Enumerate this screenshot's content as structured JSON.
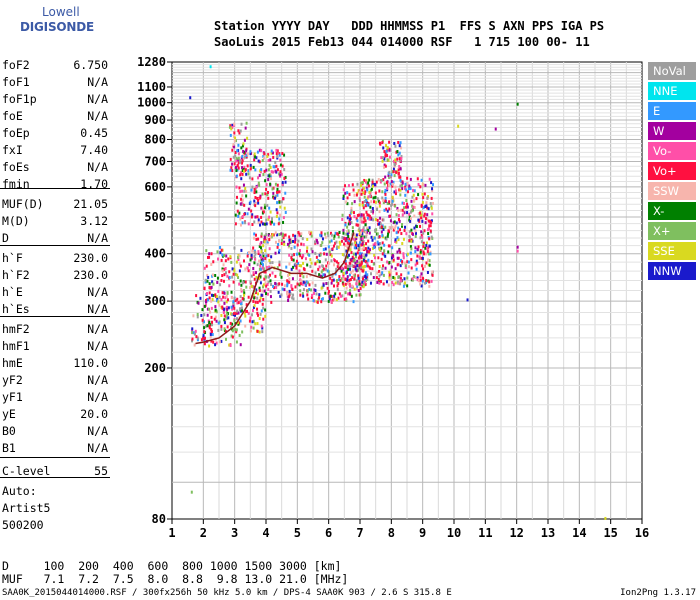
{
  "logo": {
    "line1": "Lowell",
    "line2": "DIGISONDE"
  },
  "header": {
    "line1": "Station YYYY DAY   DDD HHMMSS P1  FFS S AXN PPS IGA PS",
    "line2": "SaoLuis 2015 Feb13 044 014000 RSF   1 715 100 00- 11"
  },
  "params": [
    {
      "name": "foF2",
      "value": "6.750"
    },
    {
      "name": "foF1",
      "value": "N/A"
    },
    {
      "name": "foF1p",
      "value": "N/A"
    },
    {
      "name": "foE",
      "value": "N/A"
    },
    {
      "name": "foEp",
      "value": "0.45"
    },
    {
      "name": "fxI",
      "value": "7.40"
    },
    {
      "name": "foEs",
      "value": "N/A"
    },
    {
      "name": "fmin",
      "value": "1.70"
    },
    {
      "name": "MUF(D)",
      "value": "21.05"
    },
    {
      "name": "M(D)",
      "value": "3.12"
    },
    {
      "name": "D",
      "value": "N/A"
    },
    {
      "name": "h`F",
      "value": "230.0"
    },
    {
      "name": "h`F2",
      "value": "230.0"
    },
    {
      "name": "h`E",
      "value": "N/A"
    },
    {
      "name": "h`Es",
      "value": "N/A"
    },
    {
      "name": "hmF2",
      "value": "N/A"
    },
    {
      "name": "hmF1",
      "value": "N/A"
    },
    {
      "name": "hmE",
      "value": "110.0"
    },
    {
      "name": "yF2",
      "value": "N/A"
    },
    {
      "name": "yF1",
      "value": "N/A"
    },
    {
      "name": "yE",
      "value": "20.0"
    },
    {
      "name": "B0",
      "value": "N/A"
    },
    {
      "name": "B1",
      "value": "N/A"
    },
    {
      "name": "C-level",
      "value": "55"
    }
  ],
  "auto": [
    "Auto:",
    "Artist5",
    "500200"
  ],
  "legend": [
    {
      "label": "NoVal",
      "color": "#9e9e9e"
    },
    {
      "label": "NNE",
      "color": "#00e5ee"
    },
    {
      "label": "E",
      "color": "#3399ff"
    },
    {
      "label": "W",
      "color": "#a3009f"
    },
    {
      "label": "Vo-",
      "color": "#ff4fa8"
    },
    {
      "label": "Vo+",
      "color": "#ff1040"
    },
    {
      "label": "SSW",
      "color": "#f7b5ad"
    },
    {
      "label": "X-",
      "color": "#008000"
    },
    {
      "label": "X+",
      "color": "#7fbf5f"
    },
    {
      "label": "SSE",
      "color": "#d9d920"
    },
    {
      "label": "NNW",
      "color": "#1a1acc"
    }
  ],
  "chart_data": {
    "type": "scatter",
    "title": "",
    "xlabel": "",
    "ylabel": "",
    "xlim": [
      1,
      16
    ],
    "ylim": [
      80,
      1280
    ],
    "yscale": "log",
    "grid": true,
    "x_ticks": [
      "1",
      "2",
      "3",
      "4",
      "5",
      "6",
      "7",
      "8",
      "9",
      "10",
      "11",
      "12",
      "13",
      "14",
      "15",
      "16"
    ],
    "y_ticks": [
      80,
      200,
      300,
      400,
      500,
      600,
      700,
      800,
      900,
      1000,
      1100,
      1280
    ],
    "trace": {
      "name": "",
      "color": "#8b1a1a",
      "x": [
        1.75,
        2.0,
        2.5,
        3.0,
        3.5,
        3.8,
        4.2,
        4.8,
        5.3,
        5.8,
        6.2,
        6.5,
        6.8
      ],
      "y": [
        232,
        234,
        240,
        258,
        300,
        355,
        368,
        355,
        355,
        345,
        355,
        380,
        455
      ]
    },
    "clusters": [
      {
        "x": [
          1.6,
          3.2
        ],
        "y": [
          230,
          320
        ],
        "n": 140
      },
      {
        "x": [
          2.0,
          4.0
        ],
        "y": [
          250,
          420
        ],
        "n": 260
      },
      {
        "x": [
          3.0,
          4.6
        ],
        "y": [
          480,
          760
        ],
        "n": 260
      },
      {
        "x": [
          3.5,
          7.0
        ],
        "y": [
          300,
          460
        ],
        "n": 520
      },
      {
        "x": [
          6.4,
          7.2
        ],
        "y": [
          330,
          620
        ],
        "n": 200
      },
      {
        "x": [
          7.0,
          9.3
        ],
        "y": [
          330,
          640
        ],
        "n": 620
      },
      {
        "x": [
          7.6,
          8.3
        ],
        "y": [
          640,
          800
        ],
        "n": 80
      },
      {
        "x": [
          2.8,
          3.4
        ],
        "y": [
          650,
          900
        ],
        "n": 60
      }
    ],
    "outliers": [
      {
        "x": 1.55,
        "y": 1040,
        "color": "#1a1acc"
      },
      {
        "x": 2.2,
        "y": 1255,
        "color": "#00e5ee"
      },
      {
        "x": 10.1,
        "y": 875,
        "color": "#d9d920"
      },
      {
        "x": 11.3,
        "y": 860,
        "color": "#a3009f"
      },
      {
        "x": 12.0,
        "y": 1000,
        "color": "#008000"
      },
      {
        "x": 12.0,
        "y": 420,
        "color": "#a3009f"
      },
      {
        "x": 12.0,
        "y": 410,
        "color": "#ff4fa8"
      },
      {
        "x": 10.4,
        "y": 305,
        "color": "#1a1acc"
      },
      {
        "x": 14.8,
        "y": 81,
        "color": "#d9d920"
      },
      {
        "x": 1.6,
        "y": 95,
        "color": "#7fbf5f"
      }
    ]
  },
  "dmuf": {
    "d_label": "D",
    "muf_label": "MUF",
    "d_values": [
      "100",
      "200",
      "400",
      "600",
      "800",
      "1000",
      "1500",
      "3000 [km]"
    ],
    "muf_values": [
      "7.1",
      "7.2",
      "7.5",
      "8.0",
      "8.8",
      "9.8",
      "13.0",
      "21.0 [MHz]"
    ]
  },
  "footer": "SAA0K_2015044014000.RSF / 300fx256h 50 kHz 5.0 km / DPS-4 SAA0K 903 / 2.6 S 315.8 E",
  "version": "Ion2Png 1.3.17"
}
